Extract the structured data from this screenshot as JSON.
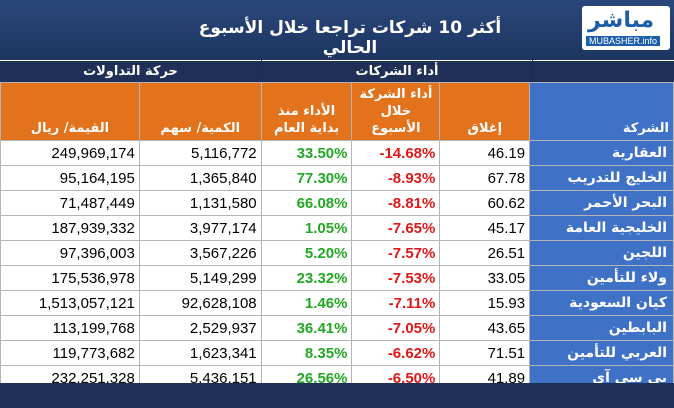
{
  "header": {
    "title": "أكثر 10 شركات تراجعا خلال الأسبوع الحالي",
    "logo_ar": "مباشر",
    "logo_en": "MUBASHER.info",
    "group_trading": "حركة التداولات",
    "group_performance": "أداء الشركات"
  },
  "columns": {
    "value": "القيمة/ ريال",
    "quantity": "الكمية/ سهم",
    "ytd": "الأداء منذ بداية العام",
    "week": "أداء الشركة خلال الأسبوع",
    "close": "إغلاق",
    "company": "الشركة"
  },
  "rows": [
    {
      "company": "العقارية",
      "close": "46.19",
      "week": "-14.68%",
      "ytd": "33.50%",
      "quantity": "5,116,772",
      "value": "249,969,174"
    },
    {
      "company": "الخليج للتدريب",
      "close": "67.78",
      "week": "-8.93%",
      "ytd": "77.30%",
      "quantity": "1,365,840",
      "value": "95,164,195"
    },
    {
      "company": "البحر الأحمر",
      "close": "60.62",
      "week": "-8.81%",
      "ytd": "66.08%",
      "quantity": "1,131,580",
      "value": "71,487,449"
    },
    {
      "company": "الخليجية العامة",
      "close": "45.17",
      "week": "-7.65%",
      "ytd": "1.05%",
      "quantity": "3,977,174",
      "value": "187,939,332"
    },
    {
      "company": "اللجين",
      "close": "26.51",
      "week": "-7.57%",
      "ytd": "5.20%",
      "quantity": "3,567,226",
      "value": "97,396,003"
    },
    {
      "company": "ولاء للتأمين",
      "close": "33.05",
      "week": "-7.53%",
      "ytd": "23.32%",
      "quantity": "5,149,299",
      "value": "175,536,978"
    },
    {
      "company": "كيان السعودية",
      "close": "15.93",
      "week": "-7.11%",
      "ytd": "1.46%",
      "quantity": "92,628,108",
      "value": "1,513,057,121"
    },
    {
      "company": "البابطين",
      "close": "43.65",
      "week": "-7.05%",
      "ytd": "36.41%",
      "quantity": "2,529,937",
      "value": "113,199,768"
    },
    {
      "company": "العربي للتأمين",
      "close": "71.51",
      "week": "-6.62%",
      "ytd": "8.35%",
      "quantity": "1,623,341",
      "value": "119,773,682"
    },
    {
      "company": "بى سى آى",
      "close": "41.89",
      "week": "-6.50%",
      "ytd": "26.56%",
      "quantity": "5,436,151",
      "value": "232,251,328"
    }
  ]
}
